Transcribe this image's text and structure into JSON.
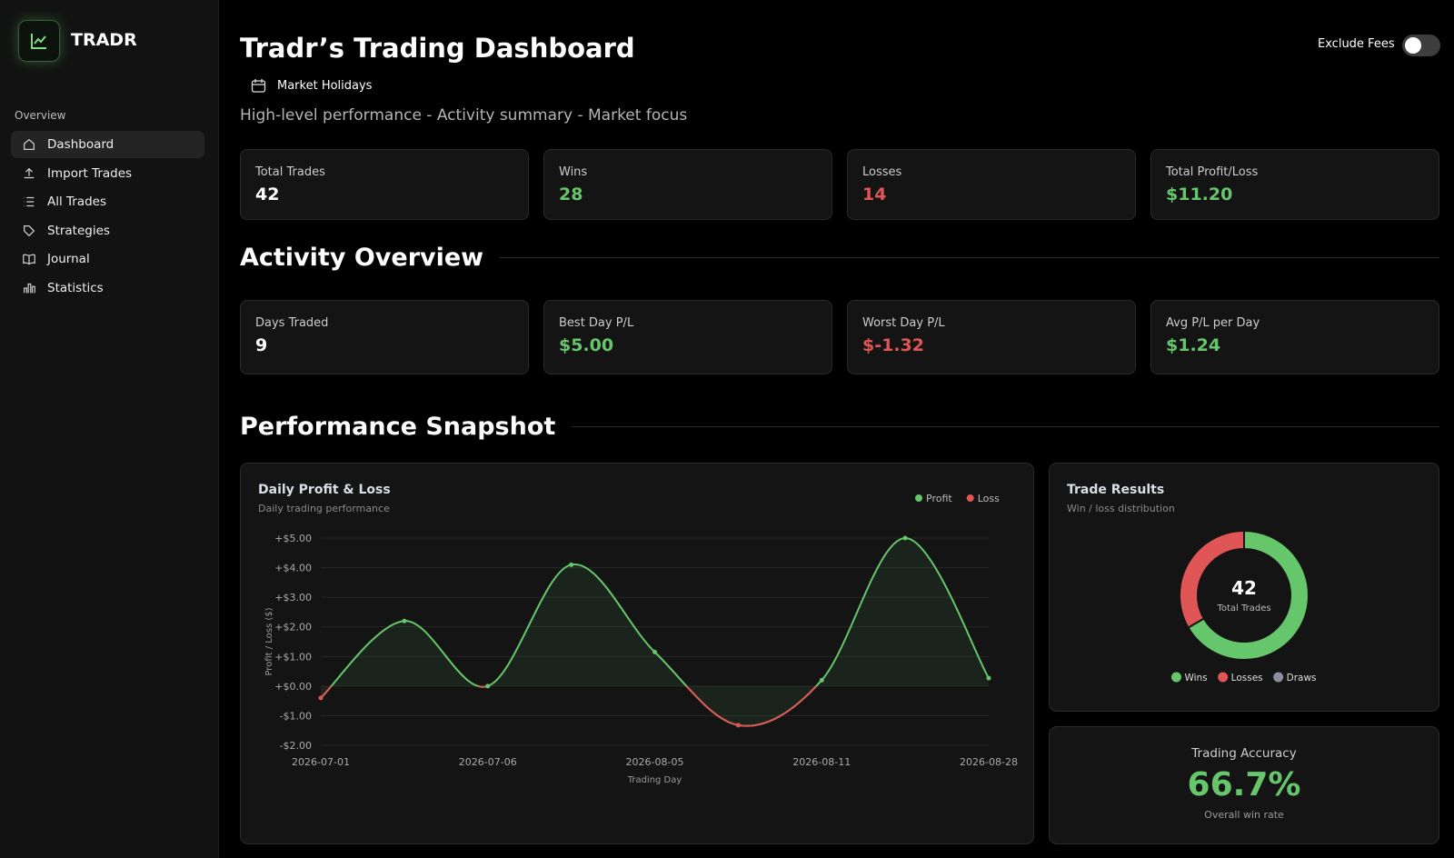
{
  "sidebar": {
    "brand": "TRADR",
    "section": "Overview",
    "nav": [
      "Dashboard",
      "Import Trades",
      "All Trades",
      "Strategies",
      "Journal",
      "Statistics"
    ],
    "active": 0
  },
  "header": {
    "title": "Tradr’s Trading Dashboard",
    "link": "Market Holidays",
    "subtitle": "High-level performance - Activity summary - Market focus",
    "toggle_label": "Exclude Fees"
  },
  "summary_cards": [
    {
      "label": "Total Trades",
      "value": "42",
      "tone": "neutral"
    },
    {
      "label": "Wins",
      "value": "28",
      "tone": "positive"
    },
    {
      "label": "Losses",
      "value": "14",
      "tone": "negative"
    },
    {
      "label": "Total Profit/Loss",
      "value": "$11.20",
      "tone": "positive"
    }
  ],
  "activity": {
    "heading": "Activity Overview",
    "cards": [
      {
        "label": "Days Traded",
        "value": "9",
        "tone": "neutral"
      },
      {
        "label": "Best Day P/L",
        "value": "$5.00",
        "tone": "positive"
      },
      {
        "label": "Worst Day P/L",
        "value": "$-1.32",
        "tone": "negative"
      },
      {
        "label": "Avg P/L per Day",
        "value": "$1.24",
        "tone": "positive"
      }
    ]
  },
  "performance": {
    "heading": "Performance Snapshot",
    "accuracy": {
      "title": "Trading Accuracy",
      "value": "66.7%",
      "caption": "Overall win rate"
    }
  },
  "chart_data": [
    {
      "type": "line",
      "title": "Daily Profit & Loss",
      "subtitle": "Daily trading performance",
      "categories": [
        "2026-07-01",
        null,
        "2026-07-06",
        null,
        "2026-08-05",
        null,
        "2026-08-11",
        null,
        "2026-08-28"
      ],
      "values": [
        -0.4,
        2.2,
        0,
        4.1,
        1.15,
        -1.32,
        0.2,
        5.0,
        0.27
      ],
      "ylim": [
        -2,
        5
      ],
      "yticks": [
        {
          "value": 5,
          "label": "+$5.00"
        },
        {
          "value": 4,
          "label": "+$4.00"
        },
        {
          "value": 3,
          "label": "+$3.00"
        },
        {
          "value": 2,
          "label": "+$2.00"
        },
        {
          "value": 1,
          "label": "+$1.00"
        },
        {
          "value": 0,
          "label": "+$0.00"
        },
        {
          "value": -1,
          "label": "-$1.00"
        },
        {
          "value": -2,
          "label": "-$2.00"
        }
      ],
      "xlabel": "Trading Day",
      "ylabel": "Profit / Loss ($)",
      "grid": true,
      "legend": [
        {
          "name": "Profit",
          "color": "#66c66b"
        },
        {
          "name": "Loss",
          "color": "#e05656"
        }
      ]
    },
    {
      "type": "pie",
      "donut": true,
      "title": "Trade Results",
      "subtitle": "Win / loss distribution",
      "categories": [
        "Wins",
        "Losses",
        "Draws"
      ],
      "values": [
        28,
        14,
        0
      ],
      "colors": [
        "#66c66b",
        "#e05656",
        "#8a8f9a"
      ],
      "center_value": 42,
      "center_label": "Total Trades"
    }
  ]
}
